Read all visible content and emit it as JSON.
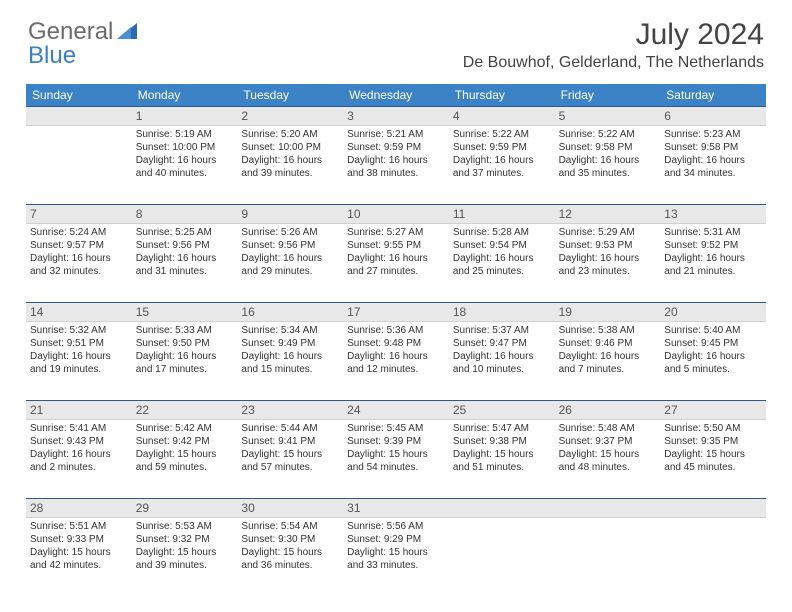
{
  "logo": {
    "text1": "General",
    "text2": "Blue"
  },
  "title": "July 2024",
  "location": "De Bouwhof, Gelderland, The Netherlands",
  "day_headers": [
    "Sunday",
    "Monday",
    "Tuesday",
    "Wednesday",
    "Thursday",
    "Friday",
    "Saturday"
  ],
  "header_bg": "#3b82c7",
  "daynum_bg": "#e8e8e8",
  "border_color": "#2a5a8a",
  "weeks": [
    {
      "nums": [
        "",
        "1",
        "2",
        "3",
        "4",
        "5",
        "6"
      ],
      "cells": [
        {},
        {
          "sunrise": "Sunrise: 5:19 AM",
          "sunset": "Sunset: 10:00 PM",
          "day1": "Daylight: 16 hours",
          "day2": "and 40 minutes."
        },
        {
          "sunrise": "Sunrise: 5:20 AM",
          "sunset": "Sunset: 10:00 PM",
          "day1": "Daylight: 16 hours",
          "day2": "and 39 minutes."
        },
        {
          "sunrise": "Sunrise: 5:21 AM",
          "sunset": "Sunset: 9:59 PM",
          "day1": "Daylight: 16 hours",
          "day2": "and 38 minutes."
        },
        {
          "sunrise": "Sunrise: 5:22 AM",
          "sunset": "Sunset: 9:59 PM",
          "day1": "Daylight: 16 hours",
          "day2": "and 37 minutes."
        },
        {
          "sunrise": "Sunrise: 5:22 AM",
          "sunset": "Sunset: 9:58 PM",
          "day1": "Daylight: 16 hours",
          "day2": "and 35 minutes."
        },
        {
          "sunrise": "Sunrise: 5:23 AM",
          "sunset": "Sunset: 9:58 PM",
          "day1": "Daylight: 16 hours",
          "day2": "and 34 minutes."
        }
      ]
    },
    {
      "nums": [
        "7",
        "8",
        "9",
        "10",
        "11",
        "12",
        "13"
      ],
      "cells": [
        {
          "sunrise": "Sunrise: 5:24 AM",
          "sunset": "Sunset: 9:57 PM",
          "day1": "Daylight: 16 hours",
          "day2": "and 32 minutes."
        },
        {
          "sunrise": "Sunrise: 5:25 AM",
          "sunset": "Sunset: 9:56 PM",
          "day1": "Daylight: 16 hours",
          "day2": "and 31 minutes."
        },
        {
          "sunrise": "Sunrise: 5:26 AM",
          "sunset": "Sunset: 9:56 PM",
          "day1": "Daylight: 16 hours",
          "day2": "and 29 minutes."
        },
        {
          "sunrise": "Sunrise: 5:27 AM",
          "sunset": "Sunset: 9:55 PM",
          "day1": "Daylight: 16 hours",
          "day2": "and 27 minutes."
        },
        {
          "sunrise": "Sunrise: 5:28 AM",
          "sunset": "Sunset: 9:54 PM",
          "day1": "Daylight: 16 hours",
          "day2": "and 25 minutes."
        },
        {
          "sunrise": "Sunrise: 5:29 AM",
          "sunset": "Sunset: 9:53 PM",
          "day1": "Daylight: 16 hours",
          "day2": "and 23 minutes."
        },
        {
          "sunrise": "Sunrise: 5:31 AM",
          "sunset": "Sunset: 9:52 PM",
          "day1": "Daylight: 16 hours",
          "day2": "and 21 minutes."
        }
      ]
    },
    {
      "nums": [
        "14",
        "15",
        "16",
        "17",
        "18",
        "19",
        "20"
      ],
      "cells": [
        {
          "sunrise": "Sunrise: 5:32 AM",
          "sunset": "Sunset: 9:51 PM",
          "day1": "Daylight: 16 hours",
          "day2": "and 19 minutes."
        },
        {
          "sunrise": "Sunrise: 5:33 AM",
          "sunset": "Sunset: 9:50 PM",
          "day1": "Daylight: 16 hours",
          "day2": "and 17 minutes."
        },
        {
          "sunrise": "Sunrise: 5:34 AM",
          "sunset": "Sunset: 9:49 PM",
          "day1": "Daylight: 16 hours",
          "day2": "and 15 minutes."
        },
        {
          "sunrise": "Sunrise: 5:36 AM",
          "sunset": "Sunset: 9:48 PM",
          "day1": "Daylight: 16 hours",
          "day2": "and 12 minutes."
        },
        {
          "sunrise": "Sunrise: 5:37 AM",
          "sunset": "Sunset: 9:47 PM",
          "day1": "Daylight: 16 hours",
          "day2": "and 10 minutes."
        },
        {
          "sunrise": "Sunrise: 5:38 AM",
          "sunset": "Sunset: 9:46 PM",
          "day1": "Daylight: 16 hours",
          "day2": "and 7 minutes."
        },
        {
          "sunrise": "Sunrise: 5:40 AM",
          "sunset": "Sunset: 9:45 PM",
          "day1": "Daylight: 16 hours",
          "day2": "and 5 minutes."
        }
      ]
    },
    {
      "nums": [
        "21",
        "22",
        "23",
        "24",
        "25",
        "26",
        "27"
      ],
      "cells": [
        {
          "sunrise": "Sunrise: 5:41 AM",
          "sunset": "Sunset: 9:43 PM",
          "day1": "Daylight: 16 hours",
          "day2": "and 2 minutes."
        },
        {
          "sunrise": "Sunrise: 5:42 AM",
          "sunset": "Sunset: 9:42 PM",
          "day1": "Daylight: 15 hours",
          "day2": "and 59 minutes."
        },
        {
          "sunrise": "Sunrise: 5:44 AM",
          "sunset": "Sunset: 9:41 PM",
          "day1": "Daylight: 15 hours",
          "day2": "and 57 minutes."
        },
        {
          "sunrise": "Sunrise: 5:45 AM",
          "sunset": "Sunset: 9:39 PM",
          "day1": "Daylight: 15 hours",
          "day2": "and 54 minutes."
        },
        {
          "sunrise": "Sunrise: 5:47 AM",
          "sunset": "Sunset: 9:38 PM",
          "day1": "Daylight: 15 hours",
          "day2": "and 51 minutes."
        },
        {
          "sunrise": "Sunrise: 5:48 AM",
          "sunset": "Sunset: 9:37 PM",
          "day1": "Daylight: 15 hours",
          "day2": "and 48 minutes."
        },
        {
          "sunrise": "Sunrise: 5:50 AM",
          "sunset": "Sunset: 9:35 PM",
          "day1": "Daylight: 15 hours",
          "day2": "and 45 minutes."
        }
      ]
    },
    {
      "nums": [
        "28",
        "29",
        "30",
        "31",
        "",
        "",
        ""
      ],
      "cells": [
        {
          "sunrise": "Sunrise: 5:51 AM",
          "sunset": "Sunset: 9:33 PM",
          "day1": "Daylight: 15 hours",
          "day2": "and 42 minutes."
        },
        {
          "sunrise": "Sunrise: 5:53 AM",
          "sunset": "Sunset: 9:32 PM",
          "day1": "Daylight: 15 hours",
          "day2": "and 39 minutes."
        },
        {
          "sunrise": "Sunrise: 5:54 AM",
          "sunset": "Sunset: 9:30 PM",
          "day1": "Daylight: 15 hours",
          "day2": "and 36 minutes."
        },
        {
          "sunrise": "Sunrise: 5:56 AM",
          "sunset": "Sunset: 9:29 PM",
          "day1": "Daylight: 15 hours",
          "day2": "and 33 minutes."
        },
        {},
        {},
        {}
      ]
    }
  ]
}
